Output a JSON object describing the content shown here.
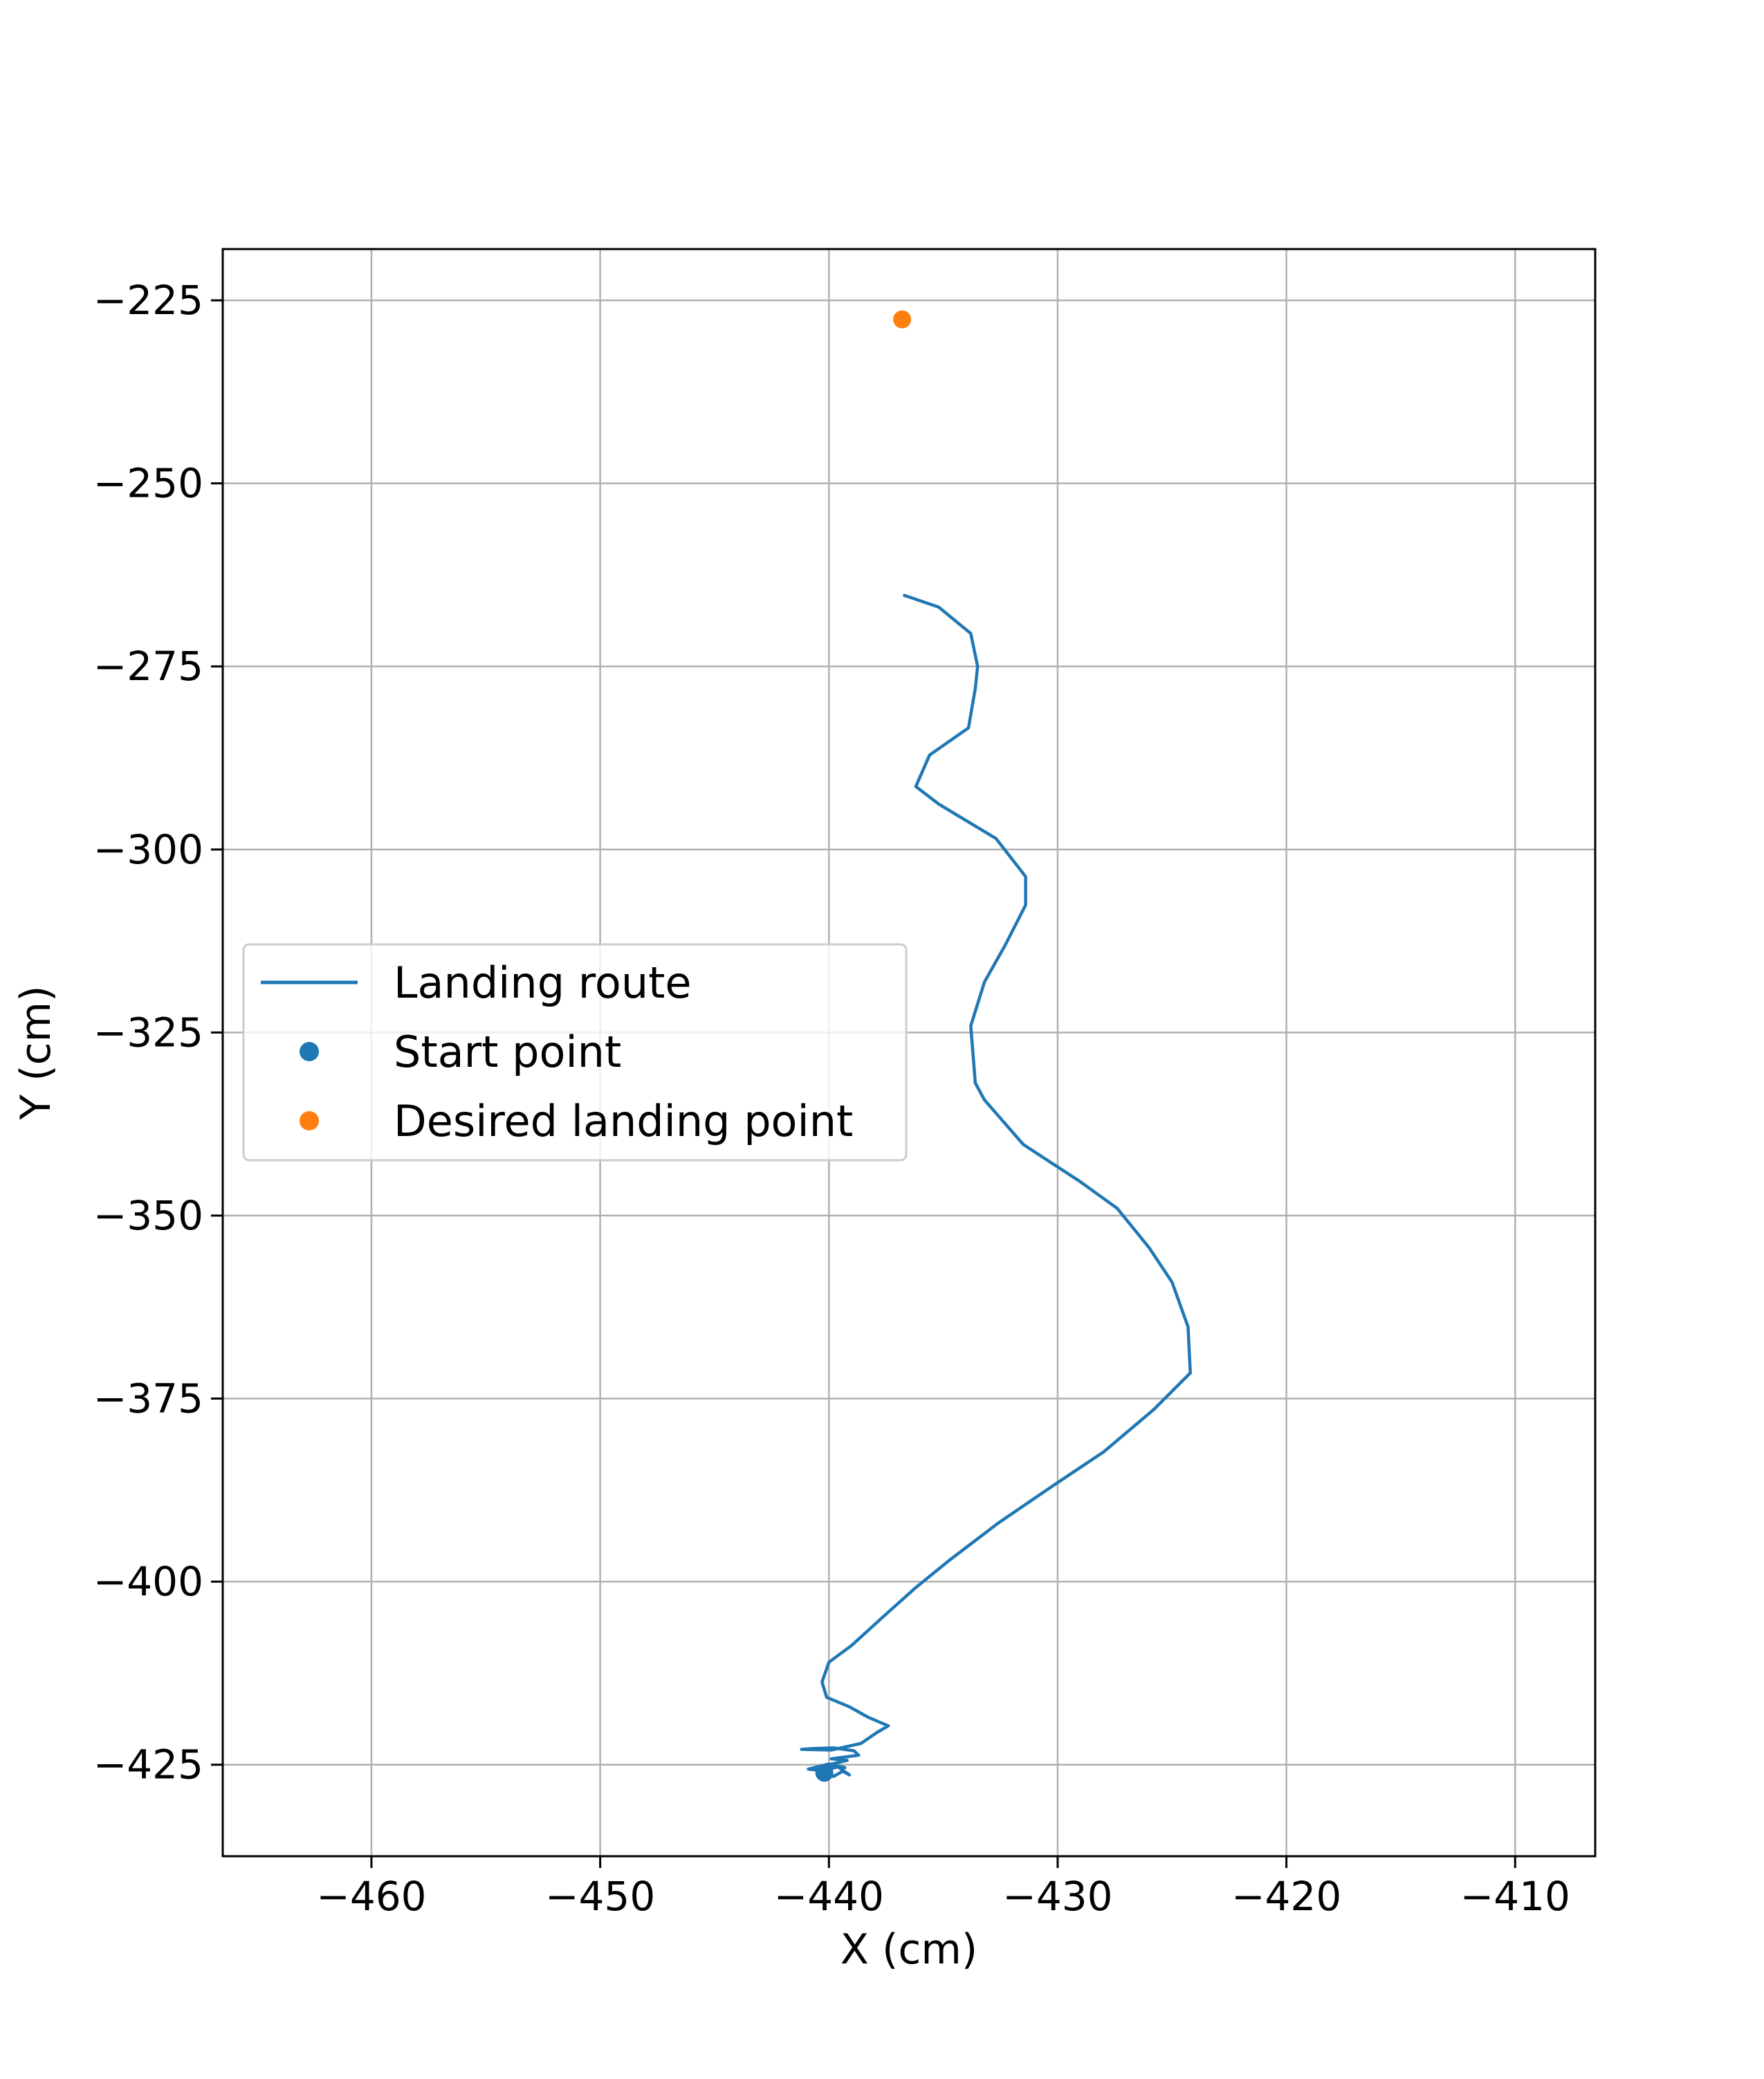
{
  "chart_data": {
    "type": "line",
    "title": "",
    "xlabel": "X (cm)",
    "ylabel": "Y (cm)",
    "xlim": [
      -466.5,
      -406.5
    ],
    "ylim": [
      -437.5,
      -218.0
    ],
    "xticks": [
      -460,
      -450,
      -440,
      -430,
      -420,
      -410
    ],
    "yticks": [
      -225,
      -250,
      -275,
      -300,
      -325,
      -350,
      -375,
      -400,
      -425
    ],
    "xtick_labels": [
      "−460",
      "−450",
      "−440",
      "−430",
      "−420",
      "−410"
    ],
    "ytick_labels": [
      "−225",
      "−250",
      "−275",
      "−300",
      "−325",
      "−350",
      "−375",
      "−400",
      "−425"
    ],
    "grid": true,
    "legend_position": "center-left",
    "series": [
      {
        "name": "Landing route",
        "kind": "line",
        "color": "#1f77b4",
        "points": [
          [
            -440.2,
            -426.1
          ],
          [
            -439.8,
            -426.6
          ],
          [
            -439.4,
            -425.9
          ],
          [
            -439.1,
            -426.4
          ],
          [
            -439.6,
            -425.3
          ],
          [
            -440.3,
            -425.8
          ],
          [
            -440.9,
            -425.6
          ],
          [
            -440.0,
            -424.9
          ],
          [
            -439.3,
            -425.4
          ],
          [
            -440.0,
            -425.0
          ],
          [
            -439.2,
            -424.4
          ],
          [
            -439.9,
            -424.2
          ],
          [
            -438.7,
            -423.7
          ],
          [
            -438.9,
            -423.1
          ],
          [
            -439.8,
            -422.7
          ],
          [
            -440.7,
            -422.8
          ],
          [
            -441.2,
            -422.9
          ],
          [
            -439.9,
            -423.0
          ],
          [
            -438.6,
            -422.1
          ],
          [
            -437.9,
            -420.6
          ],
          [
            -437.4,
            -419.7
          ],
          [
            -438.3,
            -418.5
          ],
          [
            -439.1,
            -417.1
          ],
          [
            -440.1,
            -415.8
          ],
          [
            -440.3,
            -413.7
          ],
          [
            -440.0,
            -411.0
          ],
          [
            -439.0,
            -408.7
          ],
          [
            -437.7,
            -405.0
          ],
          [
            -436.2,
            -400.8
          ],
          [
            -434.7,
            -397.0
          ],
          [
            -432.6,
            -392.0
          ],
          [
            -430.3,
            -387.1
          ],
          [
            -428.0,
            -382.3
          ],
          [
            -425.8,
            -376.5
          ],
          [
            -424.2,
            -371.5
          ],
          [
            -424.3,
            -365.2
          ],
          [
            -425.0,
            -359.1
          ],
          [
            -426.0,
            -354.4
          ],
          [
            -427.4,
            -349.0
          ],
          [
            -429.0,
            -345.4
          ],
          [
            -431.5,
            -340.3
          ],
          [
            -433.2,
            -334.2
          ],
          [
            -433.6,
            -331.9
          ],
          [
            -433.8,
            -324.1
          ],
          [
            -433.2,
            -318.1
          ],
          [
            -432.3,
            -313.1
          ],
          [
            -431.4,
            -307.6
          ],
          [
            -431.4,
            -303.7
          ],
          [
            -432.7,
            -298.5
          ],
          [
            -435.2,
            -293.8
          ],
          [
            -436.2,
            -291.4
          ],
          [
            -435.6,
            -287.1
          ],
          [
            -433.9,
            -283.4
          ],
          [
            -433.6,
            -278.0
          ],
          [
            -433.5,
            -275.0
          ],
          [
            -433.8,
            -270.5
          ],
          [
            -435.2,
            -266.9
          ],
          [
            -436.7,
            -265.3
          ]
        ]
      },
      {
        "name": "Start point",
        "kind": "scatter",
        "color": "#1f77b4",
        "points": [
          [
            -440.2,
            -426.1
          ]
        ]
      },
      {
        "name": "Desired landing point",
        "kind": "scatter",
        "color": "#ff7f0e",
        "points": [
          [
            -436.8,
            -227.6
          ]
        ]
      }
    ]
  }
}
